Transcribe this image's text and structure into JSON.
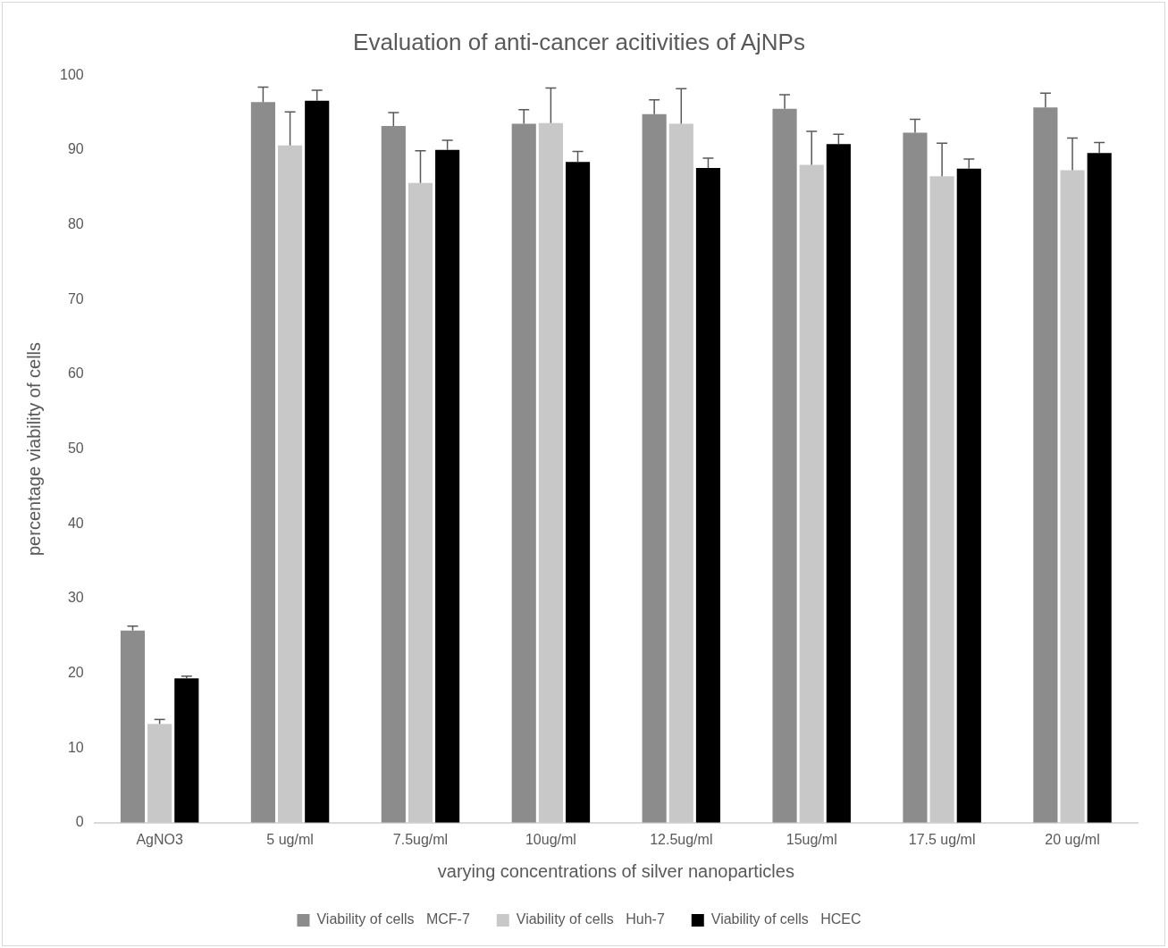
{
  "chart_data": {
    "type": "bar",
    "title": "Evaluation of anti-cancer acitivities of AjNPs",
    "xlabel": "varying concentrations of silver nanoparticles",
    "ylabel": "percentage viability of cells",
    "categories": [
      "AgNO3",
      "5 ug/ml",
      "7.5ug/ml",
      "10ug/ml",
      "12.5ug/ml",
      "15ug/ml",
      "17.5 ug/ml",
      "20 ug/ml"
    ],
    "series": [
      {
        "name": "Viability of cells   MCF-7",
        "color": "#8c8c8c",
        "values": [
          25.7,
          96.4,
          93.2,
          93.5,
          94.8,
          95.5,
          92.3,
          95.7
        ],
        "errors": [
          [
            25.7,
            26.3
          ],
          [
            96.4,
            98.4
          ],
          [
            93.2,
            95.0
          ],
          [
            93.5,
            95.4
          ],
          [
            94.8,
            96.7
          ],
          [
            95.5,
            97.4
          ],
          [
            92.3,
            94.1
          ],
          [
            95.7,
            97.6
          ]
        ]
      },
      {
        "name": "Viability of cells   Huh-7",
        "color": "#c8c8c8",
        "values": [
          13.2,
          90.6,
          85.6,
          93.6,
          93.5,
          88.0,
          86.5,
          87.3
        ],
        "errors": [
          [
            13.2,
            13.8
          ],
          [
            90.6,
            95.1
          ],
          [
            85.6,
            89.9
          ],
          [
            93.6,
            98.3
          ],
          [
            93.5,
            98.2
          ],
          [
            88.0,
            92.5
          ],
          [
            86.5,
            90.9
          ],
          [
            87.3,
            91.6
          ]
        ]
      },
      {
        "name": "Viability of cells   HCEC",
        "color": "#000000",
        "values": [
          19.3,
          96.6,
          90.0,
          88.4,
          87.6,
          90.8,
          87.5,
          89.6
        ],
        "errors": [
          [
            19.3,
            19.6
          ],
          [
            96.6,
            98.0
          ],
          [
            90.0,
            91.3
          ],
          [
            88.4,
            89.8
          ],
          [
            87.6,
            88.9
          ],
          [
            90.8,
            92.1
          ],
          [
            87.5,
            88.8
          ],
          [
            89.6,
            91.0
          ]
        ]
      }
    ],
    "ylim": [
      0,
      100
    ],
    "yticks": [
      0,
      10,
      20,
      30,
      40,
      50,
      60,
      70,
      80,
      90,
      100
    ],
    "grid": false,
    "legend": "bottom"
  }
}
